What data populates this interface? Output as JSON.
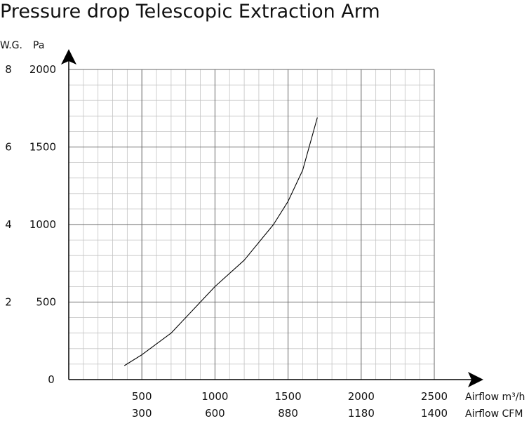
{
  "chart_data": {
    "type": "line",
    "title": "Pressure drop Telescopic Extraction Arm",
    "x_axis": {
      "ticks": [
        500,
        1000,
        1500,
        2000,
        2500
      ],
      "secondary_ticks": [
        "300",
        "600",
        "880",
        "1180",
        "1400"
      ],
      "label": "Airflow m³/h",
      "secondary_label": "Airflow CFM",
      "range": [
        0,
        2500
      ]
    },
    "y_axis": {
      "ticks": [
        500,
        1000,
        1500,
        2000
      ],
      "zero_label": "0",
      "secondary_ticks": [
        "2",
        "4",
        "6",
        "8"
      ],
      "label": "Pa",
      "secondary_label": "W.G.",
      "range": [
        0,
        2000
      ]
    },
    "grid": true,
    "series": [
      {
        "x": [
          380,
          500,
          700,
          900,
          1000,
          1200,
          1400,
          1500,
          1600,
          1700
        ],
        "y": [
          90,
          160,
          300,
          500,
          600,
          770,
          1000,
          1150,
          1350,
          1690
        ]
      }
    ]
  }
}
